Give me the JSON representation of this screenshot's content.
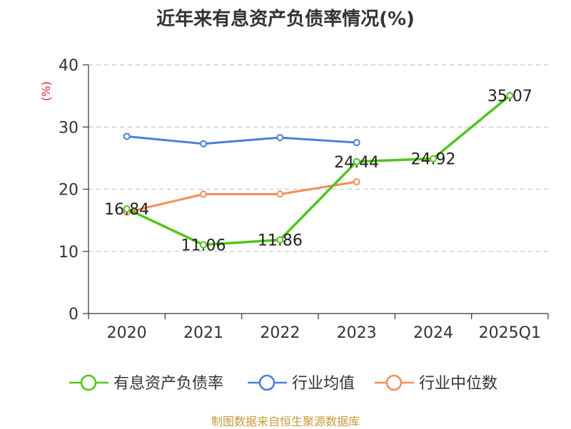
{
  "chart_data": {
    "type": "line",
    "title": "近年来有息资产负债率情况(%)",
    "ylabel": "(%)",
    "categories": [
      "2020",
      "2021",
      "2022",
      "2023",
      "2024",
      "2025Q1"
    ],
    "ylim": [
      0,
      40
    ],
    "yticks": [
      0,
      10,
      20,
      30,
      40
    ],
    "grid": true,
    "legend_position": "bottom",
    "series": [
      {
        "name": "有息资产负债率",
        "color": "#52c41a",
        "values": [
          16.84,
          11.06,
          11.86,
          24.44,
          24.92,
          35.07
        ],
        "labels": [
          "16.84",
          "11.06",
          "11.86",
          "24.44",
          "24.92",
          "35.07"
        ]
      },
      {
        "name": "行业均值",
        "color": "#4a7fd8",
        "values": [
          28.5,
          27.3,
          28.3,
          27.5,
          null,
          null
        ]
      },
      {
        "name": "行业中位数",
        "color": "#f68c5a",
        "values": [
          16.3,
          19.2,
          19.2,
          21.2,
          null,
          null
        ]
      }
    ]
  },
  "source": "制图数据来自恒生聚源数据库"
}
